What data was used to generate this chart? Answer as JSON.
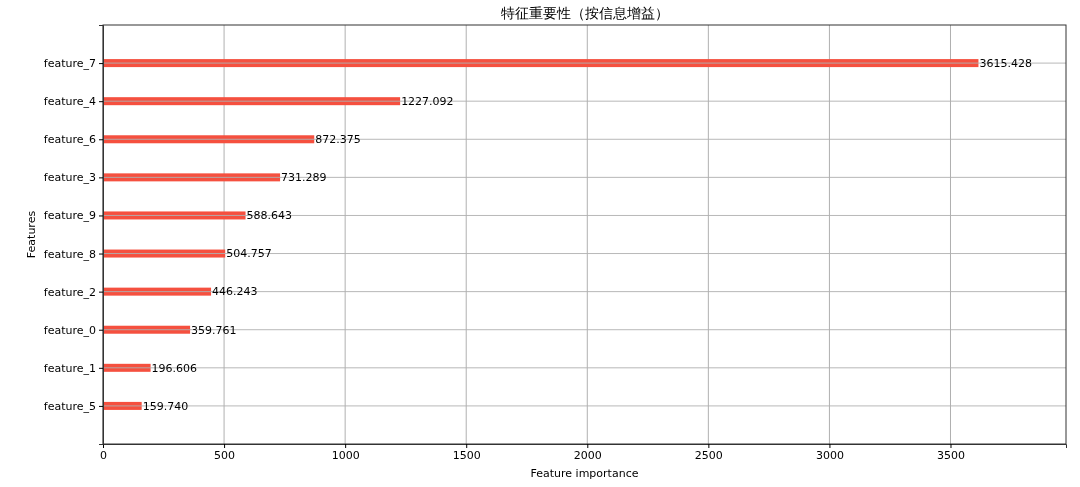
{
  "chart_data": {
    "type": "bar",
    "orientation": "horizontal",
    "title": "特征重要性（按信息增益）",
    "xlabel": "Feature importance",
    "ylabel": "Features",
    "categories": [
      "feature_7",
      "feature_4",
      "feature_6",
      "feature_3",
      "feature_9",
      "feature_8",
      "feature_2",
      "feature_0",
      "feature_1",
      "feature_5"
    ],
    "values": [
      3615.428,
      1227.092,
      872.375,
      731.289,
      588.643,
      504.757,
      446.243,
      359.761,
      196.606,
      159.74
    ],
    "value_labels": [
      "3615.428",
      "1227.092",
      "872.375",
      "731.289",
      "588.643",
      "504.757",
      "446.243",
      "359.761",
      "196.606",
      "159.740"
    ],
    "color": "#f5503f",
    "xlim": [
      0,
      3977
    ],
    "xticks": [
      0,
      500,
      1000,
      1500,
      2000,
      2500,
      3000,
      3500
    ],
    "grid": true
  }
}
